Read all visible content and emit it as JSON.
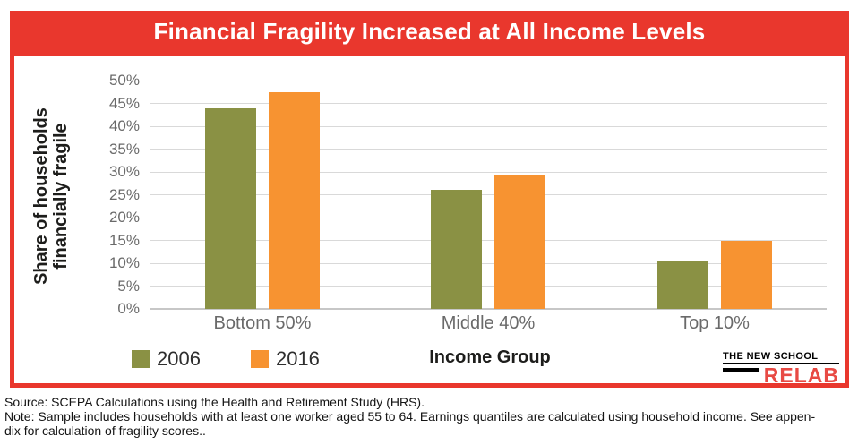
{
  "header": {
    "title": "Financial Fragility Increased at All Income Levels"
  },
  "chart_data": {
    "type": "bar",
    "title": "Financial Fragility Increased at All Income Levels",
    "categories": [
      "Bottom 50%",
      "Middle 40%",
      "Top 10%"
    ],
    "series": [
      {
        "name": "2006",
        "color": "#8a9144",
        "values": [
          44,
          26,
          10.5
        ]
      },
      {
        "name": "2016",
        "color": "#f79331",
        "values": [
          47.5,
          29.5,
          15
        ]
      }
    ],
    "xlabel": "Income Group",
    "ylabel": "Share of households financially fragile",
    "ylabel_lines": [
      "Share of households",
      "financially fragile"
    ],
    "ylim": [
      0,
      50
    ],
    "ytick_step": 5,
    "ytick_suffix": "%",
    "grid": true,
    "legend_position": "bottom-left"
  },
  "logo": {
    "line1": "THE NEW SCHOOL",
    "line2": "RELAB"
  },
  "footer": {
    "lines": [
      "Source: SCEPA Calculations using the Health and Retirement Study (HRS).",
      "Note: Sample includes households with at least one worker aged 55 to 64. Earnings quantiles are calculated using household income. See appen-",
      "dix for calculation of fragility scores.."
    ]
  },
  "colors": {
    "banner_red": "#e9372d",
    "bar_2006_green": "#8a9144",
    "bar_2016_orange": "#f79331",
    "gridline_gray": "#d9d9d9",
    "axis_text_gray": "#6a6a6a"
  }
}
